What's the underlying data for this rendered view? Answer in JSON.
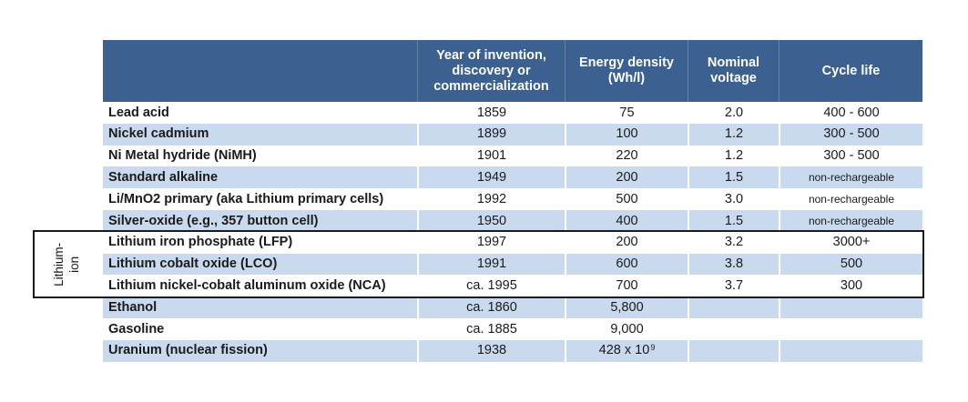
{
  "colors": {
    "header_bg": "#3C608F",
    "band_bg": "#C9DAEE",
    "header_text": "#FFFFFF",
    "body_text": "#1A1A1A",
    "box_border": "#1A1A1A"
  },
  "group_label": {
    "text": "Lithium-\nion",
    "flat": "Lithium-ion"
  },
  "chart_data": {
    "type": "table",
    "title": "",
    "legend_position": "none",
    "header": {
      "name": "",
      "year": "Year of invention,\ndiscovery or\ncommercialization",
      "energy": "Energy density\n(Wh/l)",
      "voltage": "Nominal\nvoltage",
      "cycle": "Cycle life"
    },
    "columns": [
      "",
      "Year of invention, discovery or commercialization",
      "Energy density (Wh/l)",
      "Nominal voltage",
      "Cycle life"
    ],
    "rows": [
      {
        "name": "Lead acid",
        "year": "1859",
        "energy": "75",
        "voltage": "2.0",
        "cycle": "400 - 600"
      },
      {
        "name": "Nickel cadmium",
        "year": "1899",
        "energy": "100",
        "voltage": "1.2",
        "cycle": "300 - 500"
      },
      {
        "name": "Ni Metal hydride (NiMH)",
        "year": "1901",
        "energy": "220",
        "voltage": "1.2",
        "cycle": "300 - 500"
      },
      {
        "name": "Standard alkaline",
        "year": "1949",
        "energy": "200",
        "voltage": "1.5",
        "cycle": "non-rechargeable"
      },
      {
        "name": "Li/MnO2 primary (aka Lithium primary cells)",
        "year": "1992",
        "energy": "500",
        "voltage": "3.0",
        "cycle": "non-rechargeable"
      },
      {
        "name": "Silver-oxide (e.g., 357 button cell)",
        "year": "1950",
        "energy": "400",
        "voltage": "1.5",
        "cycle": "non-rechargeable"
      },
      {
        "name": "Lithium iron phosphate (LFP)",
        "year": "1997",
        "energy": "200",
        "voltage": "3.2",
        "cycle": "3000+"
      },
      {
        "name": "Lithium cobalt oxide (LCO)",
        "year": "1991",
        "energy": "600",
        "voltage": "3.8",
        "cycle": "500"
      },
      {
        "name": "Lithium nickel-cobalt aluminum oxide (NCA)",
        "year": "ca. 1995",
        "energy": "700",
        "voltage": "3.7",
        "cycle": "300"
      },
      {
        "name": "Ethanol",
        "year": "ca. 1860",
        "energy": "5,800",
        "voltage": "",
        "cycle": ""
      },
      {
        "name": "Gasoline",
        "year": "ca. 1885",
        "energy": "9,000",
        "voltage": "",
        "cycle": ""
      },
      {
        "name": "Uranium (nuclear fission)",
        "year": "1938",
        "energy": "428 x 10^9",
        "voltage": "",
        "cycle": ""
      }
    ],
    "row_group": {
      "label": "Lithium-ion",
      "member_rows": [
        "Lithium iron phosphate (LFP)",
        "Lithium cobalt oxide (LCO)",
        "Lithium nickel-cobalt aluminum oxide (NCA)"
      ]
    }
  }
}
